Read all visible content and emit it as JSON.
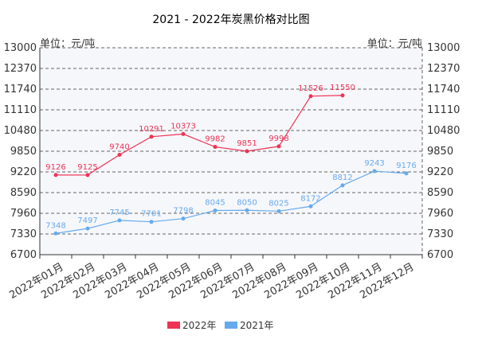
{
  "chart_data": {
    "type": "line",
    "title": "2021 - 2022年炭黑价格对比图",
    "unit_left": "单位：元/吨",
    "unit_right": "单位：元/吨",
    "categories": [
      "2022年01月",
      "2022年02月",
      "2022年03月",
      "2022年04月",
      "2022年05月",
      "2022年06月",
      "2022年07月",
      "2022年08月",
      "2022年09月",
      "2022年10月",
      "2022年11月",
      "2022年12月"
    ],
    "y_ticks": [
      6700,
      7330,
      7960,
      8590,
      9220,
      9850,
      10480,
      11110,
      11740,
      12370,
      13000
    ],
    "ylim": [
      6700,
      13000
    ],
    "grid": true,
    "legend_position": "bottom",
    "series": [
      {
        "name": "2022年",
        "color": "#ee3355",
        "values": [
          9126,
          9125,
          9740,
          10291,
          10373,
          9982,
          9851,
          9998,
          11526,
          11550,
          null,
          null
        ]
      },
      {
        "name": "2021年",
        "color": "#66aaee",
        "values": [
          7348,
          7497,
          7745,
          7701,
          7798,
          8045,
          8050,
          8025,
          8172,
          8812,
          9243,
          9176
        ]
      }
    ]
  }
}
